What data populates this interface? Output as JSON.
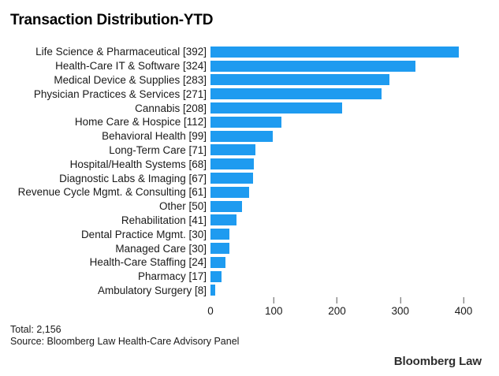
{
  "title": "Transaction Distribution-YTD",
  "chart_data": {
    "type": "bar",
    "orientation": "horizontal",
    "title": "Transaction Distribution-YTD",
    "categories": [
      "Life Science & Pharmaceutical",
      "Health-Care IT & Software",
      "Medical Device & Supplies",
      "Physician Practices & Services",
      "Cannabis",
      "Home Care & Hospice",
      "Behavioral Health",
      "Long-Term Care",
      "Hospital/Health Systems",
      "Diagnostic Labs & Imaging",
      "Revenue Cycle Mgmt. & Consulting",
      "Other",
      "Rehabilitation",
      "Dental Practice Mgmt.",
      "Managed Care",
      "Health-Care Staffing",
      "Pharmacy",
      "Ambulatory Surgery"
    ],
    "values": [
      392,
      324,
      283,
      271,
      208,
      112,
      99,
      71,
      68,
      67,
      61,
      50,
      41,
      30,
      30,
      24,
      17,
      8
    ],
    "label_format": "{category} [{value}]",
    "xlabel": "",
    "ylabel": "",
    "xlim": [
      0,
      400
    ],
    "x_ticks": [
      0,
      100,
      200,
      300,
      400
    ],
    "grid": false,
    "legend": false,
    "bar_color": "#1e9bf0"
  },
  "footer": {
    "total": "Total: 2,156",
    "source": "Source: Bloomberg Law Health-Care Advisory Panel"
  },
  "branding": {
    "logo": "Bloomberg Law"
  }
}
